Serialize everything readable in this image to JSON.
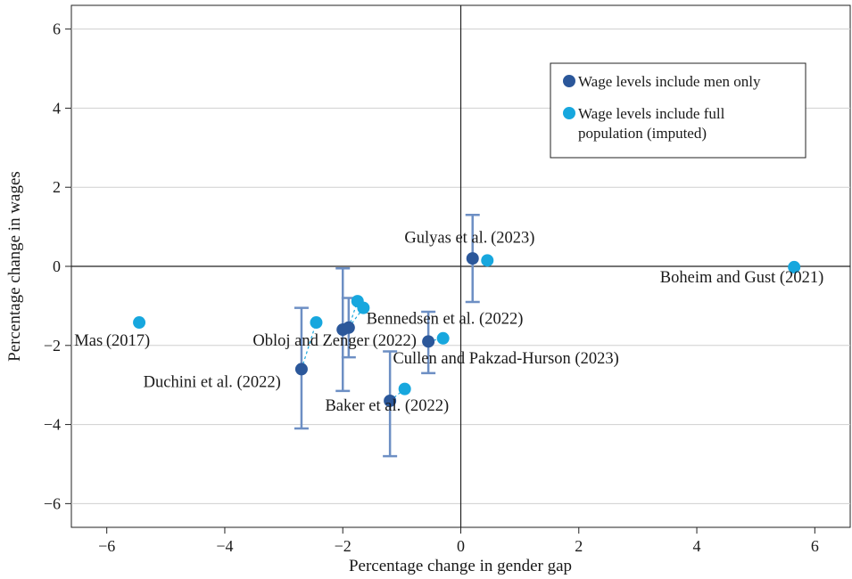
{
  "chart_data": {
    "type": "scatter",
    "title": "",
    "xlabel": "Percentage change in gender gap",
    "ylabel": "Percentage change in wages",
    "xlim": [
      -6.6,
      6.6
    ],
    "ylim": [
      -6.6,
      6.6
    ],
    "xticks": [
      -6,
      -4,
      -2,
      0,
      2,
      4,
      6
    ],
    "yticks": [
      -6,
      -4,
      -2,
      0,
      2,
      4,
      6
    ],
    "xtick_labels": [
      "−6",
      "−4",
      "−2",
      "0",
      "2",
      "4",
      "6"
    ],
    "ytick_labels": [
      "−6",
      "−4",
      "−2",
      "0",
      "2",
      "4",
      "6"
    ],
    "grid": "horizontal",
    "legend_position": "upper-right",
    "series": [
      {
        "name": "Wage levels include men only",
        "color": "#2b579a",
        "points": [
          {
            "x": 0.2,
            "y": 0.2,
            "lo": -0.9,
            "hi": 1.3
          },
          {
            "x": -0.55,
            "y": -1.9,
            "lo": -2.7,
            "hi": -1.15
          },
          {
            "x": -1.2,
            "y": -3.4,
            "lo": -4.8,
            "hi": -2.15
          },
          {
            "x": -2.7,
            "y": -2.6,
            "lo": -4.1,
            "hi": -1.05
          },
          {
            "x": -2.0,
            "y": -1.6,
            "lo": -3.15,
            "hi": -0.05
          },
          {
            "x": -1.9,
            "y": -1.55,
            "lo": -2.3,
            "hi": -0.8
          }
        ]
      },
      {
        "name": "Wage levels include full population (imputed)",
        "color": "#17a7de",
        "points": [
          {
            "x": 0.45,
            "y": 0.15
          },
          {
            "x": 5.65,
            "y": -0.02
          },
          {
            "x": -0.3,
            "y": -1.82
          },
          {
            "x": -0.95,
            "y": -3.1
          },
          {
            "x": -5.45,
            "y": -1.42
          },
          {
            "x": -2.45,
            "y": -1.42
          },
          {
            "x": -1.75,
            "y": -0.88
          },
          {
            "x": -1.65,
            "y": -1.05
          }
        ]
      }
    ],
    "connectors": [
      {
        "x1": -2.7,
        "y1": -2.6,
        "x2": -2.45,
        "y2": -1.42
      },
      {
        "x1": -1.2,
        "y1": -3.4,
        "x2": -0.95,
        "y2": -3.1
      },
      {
        "x1": -0.55,
        "y1": -1.9,
        "x2": -0.3,
        "y2": -1.82
      },
      {
        "x1": -1.9,
        "y1": -1.55,
        "x2": -1.75,
        "y2": -0.88
      },
      {
        "x1": -1.9,
        "y1": -1.55,
        "x2": -1.65,
        "y2": -1.05
      }
    ],
    "annotations": [
      {
        "text": "Gulyas et al. (2023)",
        "x": 0.15,
        "y": 0.6,
        "anchor": "middle"
      },
      {
        "text": "Boheim and Gust (2021)",
        "x": 6.15,
        "y": -0.4,
        "anchor": "end"
      },
      {
        "text": "Bennedsen et al. (2022)",
        "x": -1.6,
        "y": -1.45,
        "anchor": "start"
      },
      {
        "text": "Mas (2017)",
        "x": -6.55,
        "y": -2.0,
        "anchor": "start"
      },
      {
        "text": "Obloj and Zenger (2022)",
        "x": -0.75,
        "y": -2.0,
        "anchor": "end"
      },
      {
        "text": "Cullen and Pakzad-Hurson (2023)",
        "x": -1.15,
        "y": -2.45,
        "anchor": "start"
      },
      {
        "text": "Duchini et al. (2022)",
        "x": -3.05,
        "y": -3.05,
        "anchor": "end"
      },
      {
        "text": "Baker et al. (2022)",
        "x": -1.25,
        "y": -3.65,
        "anchor": "middle"
      }
    ]
  }
}
